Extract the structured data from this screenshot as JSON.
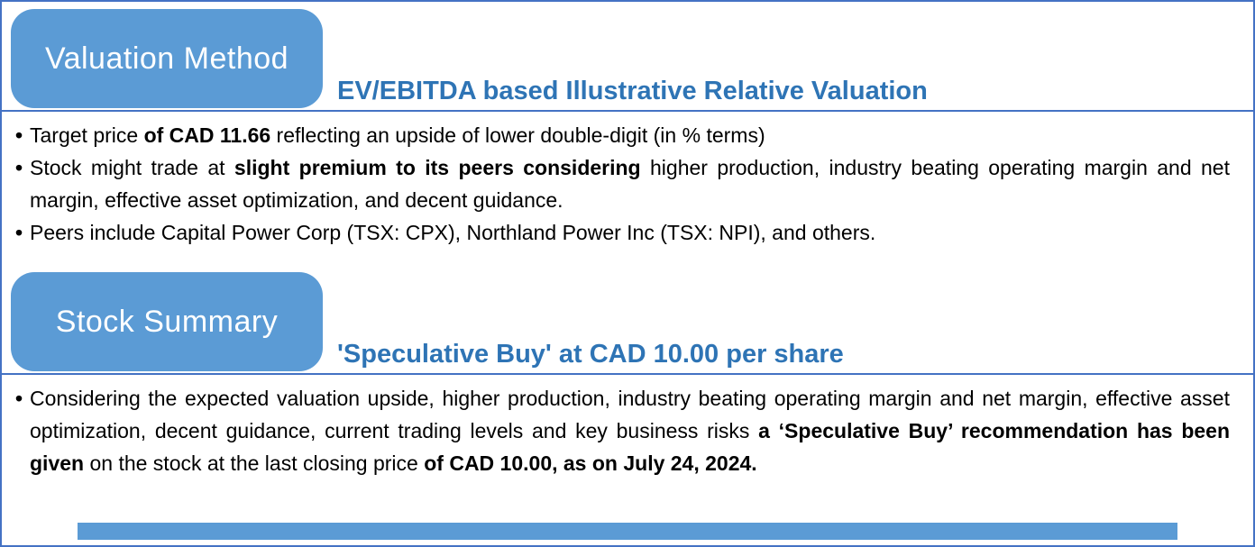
{
  "theme": {
    "tab_color": "#5B9BD5",
    "heading_color": "#2E74B5",
    "border_color": "#4472C4",
    "tab_text_color": "#FFFFFF",
    "body_text_color": "#000000",
    "bottom_bar_color": "#5B9BD5"
  },
  "sections": [
    {
      "tab_label": "Valuation Method",
      "heading": "EV/EBITDA based Illustrative Relative Valuation",
      "bullets": [
        [
          {
            "text": "Target price ",
            "bold": false
          },
          {
            "text": "of CAD 11.66",
            "bold": true
          },
          {
            "text": " reflecting an upside of lower double-digit (in % terms)",
            "bold": false
          }
        ],
        [
          {
            "text": "Stock might trade at ",
            "bold": false
          },
          {
            "text": "slight premium to its peers considering",
            "bold": true
          },
          {
            "text": " higher production, industry beating operating margin and net margin, effective asset optimization, and decent guidance.",
            "bold": false
          }
        ],
        [
          {
            "text": "Peers include Capital Power Corp (TSX: CPX), Northland Power Inc (TSX: NPI), and others.",
            "bold": false
          }
        ]
      ]
    },
    {
      "tab_label": "Stock Summary",
      "heading": "'Speculative Buy' at CAD 10.00 per share",
      "bullets": [
        [
          {
            "text": "Considering the expected valuation upside, higher production, industry beating operating margin and net margin, effective asset optimization, decent guidance, current trading levels and key business risks ",
            "bold": false
          },
          {
            "text": "a ‘Speculative Buy’ recommendation has been given",
            "bold": true
          },
          {
            "text": " on the stock at the last closing price ",
            "bold": false
          },
          {
            "text": "of CAD 10.00, as on July 24, 2024.",
            "bold": true
          }
        ]
      ]
    }
  ]
}
